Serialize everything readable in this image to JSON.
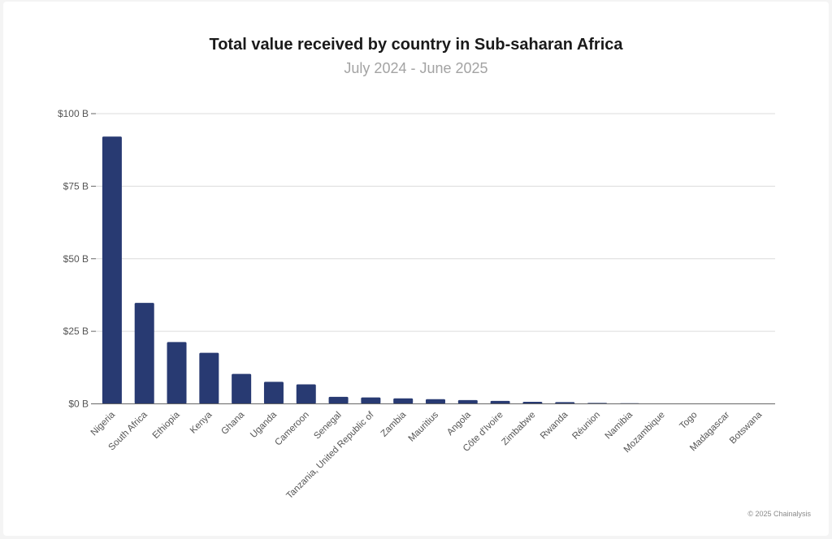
{
  "chart_data": {
    "type": "bar",
    "title": "Total value received by country in Sub-saharan Africa",
    "subtitle": "July 2024 - June 2025",
    "xlabel": "",
    "ylabel": "",
    "categories": [
      "Nigeria",
      "South Africa",
      "Ethiopia",
      "Kenya",
      "Ghana",
      "Uganda",
      "Cameroon",
      "Senegal",
      "Tanzania, United Republic of",
      "Zambia",
      "Mauritius",
      "Angola",
      "Côte d'Ivoire",
      "Zimbabwe",
      "Rwanda",
      "Réunion",
      "Namibia",
      "Mozambique",
      "Togo",
      "Madagascar",
      "Botswana"
    ],
    "values": [
      92.1,
      34.8,
      21.3,
      17.6,
      10.3,
      7.6,
      6.7,
      2.4,
      2.2,
      1.9,
      1.6,
      1.3,
      1.0,
      0.7,
      0.6,
      0.3,
      0.2,
      0.1,
      0.1,
      0.05,
      0.03
    ],
    "value_unit": "B USD",
    "ylim": [
      0,
      100
    ],
    "yticks": [
      0,
      25,
      50,
      75,
      100
    ],
    "ytick_labels": [
      "$0 B",
      "$25 B",
      "$50 B",
      "$75 B",
      "$100 B"
    ],
    "grid": true,
    "legend": "none",
    "bar_color": "#283a72"
  },
  "credit": "© 2025 Chainalysis"
}
